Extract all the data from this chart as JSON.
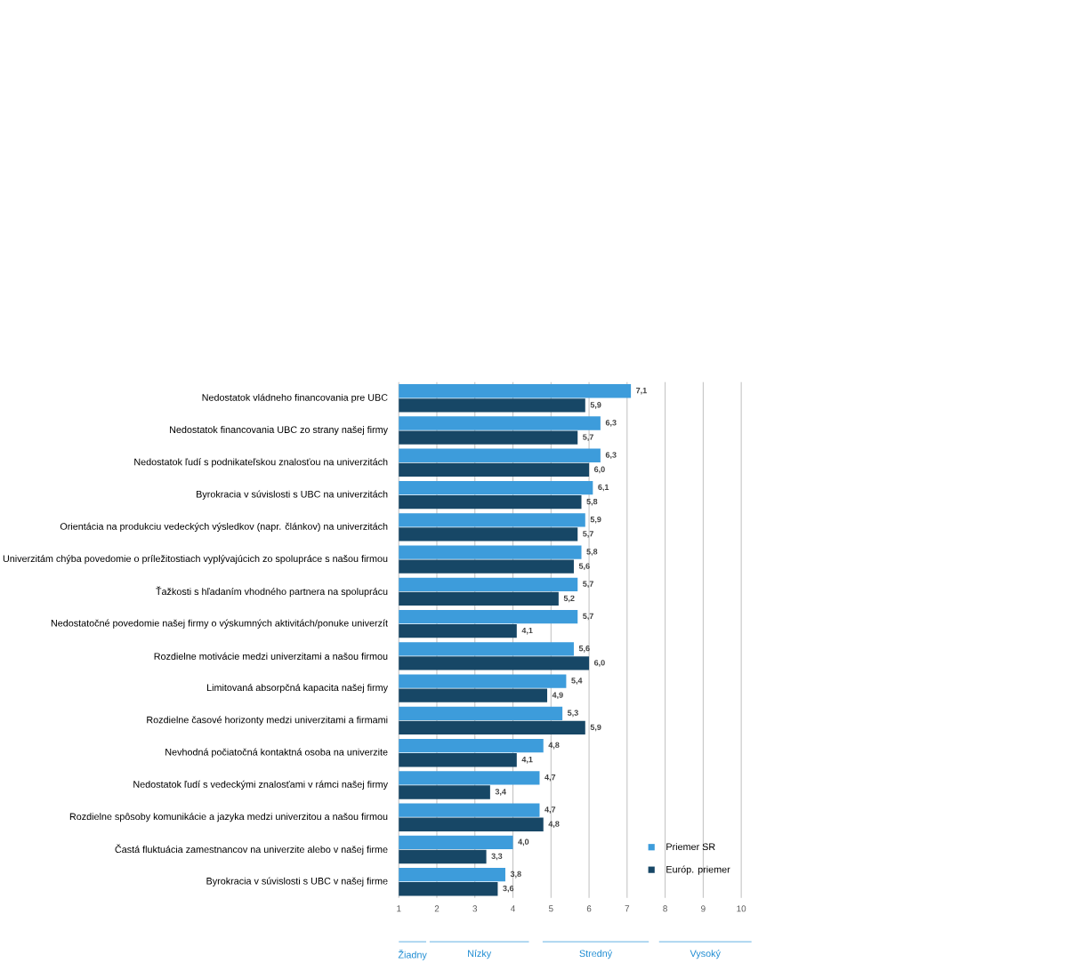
{
  "chart_data": {
    "type": "bar",
    "orientation": "horizontal",
    "categories": [
      "Nedostatok vládneho financovania pre UBC",
      "Nedostatok financovania UBC zo strany našej firmy",
      "Nedostatok ľudí s podnikateľskou znalosťou na univerzitách",
      "Byrokracia v súvislosti s UBC na univerzitách",
      "Orientácia na produkciu vedeckých výsledkov (napr. článkov) na univerzitách",
      "Univerzitám chýba povedomie o príležitostiach vyplývajúcich zo spolupráce s našou firmou",
      "Ťažkosti s hľadaním vhodného partnera na spoluprácu",
      "Nedostatočné povedomie našej firmy o výskumných aktivitách/ponuke univerzít",
      "Rozdielne motivácie medzi univerzitami a našou firmou",
      "Limitovaná absorpčná kapacita našej firmy",
      "Rozdielne časové horizonty medzi univerzitami a firmami",
      "Nevhodná počiatočná kontaktná osoba na univerzite",
      "Nedostatok ľudí s vedeckými znalosťami v rámci našej firmy",
      "Rozdielne spôsoby komunikácie a jazyka medzi univerzitou a našou firmou",
      "Častá fluktuácia zamestnancov na univerzite alebo v našej firme",
      "Byrokracia v súvislosti s UBC v našej firme"
    ],
    "series": [
      {
        "name": "Priemer SR",
        "color": "#3d9cdb",
        "values": [
          7.1,
          6.3,
          6.3,
          6.1,
          5.9,
          5.8,
          5.7,
          5.7,
          5.6,
          5.4,
          5.3,
          4.8,
          4.7,
          4.7,
          4.0,
          3.8
        ],
        "value_labels": [
          "7,1",
          "6,3",
          "6,3",
          "6,1",
          "5,9",
          "5,8",
          "5,7",
          "5,7",
          "5,6",
          "5,4",
          "5,3",
          "4,8",
          "4,7",
          "4,7",
          "4,0",
          "3,8"
        ]
      },
      {
        "name": "Európ. priemer",
        "color": "#174766",
        "values": [
          5.9,
          5.7,
          6.0,
          5.8,
          5.7,
          5.6,
          5.2,
          4.1,
          6.0,
          4.9,
          5.9,
          4.1,
          3.4,
          4.8,
          3.3,
          3.6
        ],
        "value_labels": [
          "5,9",
          "5,7",
          "6,0",
          "5,8",
          "5,7",
          "5,6",
          "5,2",
          "4,1",
          "6,0",
          "4,9",
          "5,9",
          "4,1",
          "3,4",
          "4,8",
          "3,3",
          "3,6"
        ]
      }
    ],
    "xlim": [
      1,
      10
    ],
    "xticks": [
      1,
      2,
      3,
      4,
      5,
      6,
      7,
      8,
      9,
      10
    ],
    "grid": "x",
    "legend": "bottom right",
    "annotations": [
      "Žiadny",
      "Nízky",
      "Stredný",
      "Vysoký"
    ]
  }
}
